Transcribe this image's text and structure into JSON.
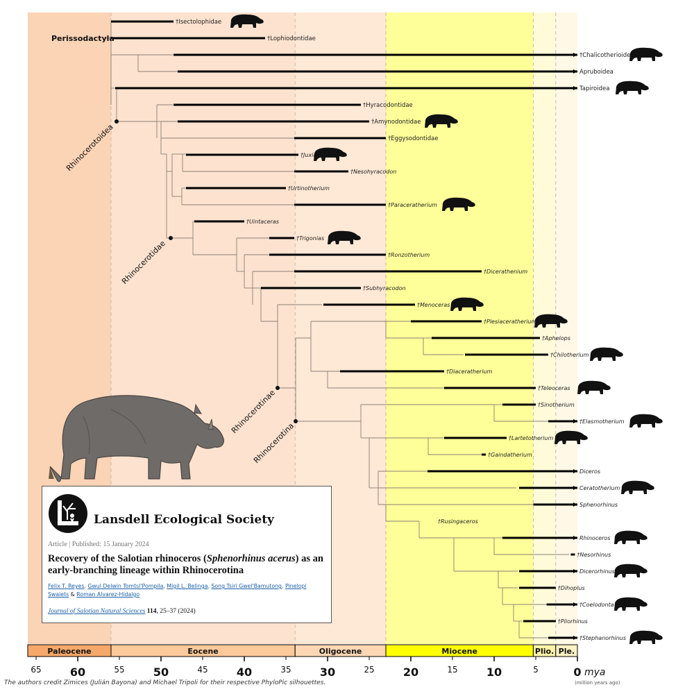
{
  "credit": "The authors credit Zimices (Julián Bayona) and Michael Tripoli for their respective PhyloPic silhouettes.",
  "axis": {
    "unit": "mya",
    "unit_note": "(million years ago)",
    "major_ticks": [
      60,
      50,
      40,
      30,
      20,
      10,
      0
    ],
    "minor_ticks": [
      65,
      55,
      45,
      35,
      25,
      15,
      5
    ]
  },
  "epochs": [
    {
      "name": "Paleocene",
      "from": 66,
      "to": 56,
      "color": "#f5a86a",
      "bg": "#fbd3b5"
    },
    {
      "name": "Eocene",
      "from": 56,
      "to": 33.9,
      "color": "#fcc99a",
      "bg": "#fde2cf"
    },
    {
      "name": "Oligocene",
      "from": 33.9,
      "to": 23,
      "color": "#fdd7b4",
      "bg": "#fee8d6"
    },
    {
      "name": "Miocene",
      "from": 23,
      "to": 5.3,
      "color": "#ffff00",
      "bg": "#ffff99"
    },
    {
      "name": "Plio.",
      "from": 5.3,
      "to": 2.6,
      "color": "#fff3a8",
      "bg": "#fffbd9"
    },
    {
      "name": "Ple.",
      "from": 2.6,
      "to": 0,
      "color": "#fff1c4",
      "bg": "#fff8e6"
    }
  ],
  "clades": {
    "perissodactyla": "Perissodactyla",
    "rhinocerotoidea": "Rhinocerotoidea",
    "rhinocerotidae": "Rhinocerotidae",
    "rhinocerotinae": "Rhinocerotinae",
    "rhinocerotina": "Rhinocerotina"
  },
  "taxa": [
    {
      "label": "†Isectolophidae",
      "italic": false,
      "from": 56,
      "to": 48.5
    },
    {
      "label": "†Lophiodontidae",
      "italic": false,
      "from": 56,
      "to": 37.5
    },
    {
      "label": "†Chalicotherioidea",
      "italic": false,
      "from": 48.5,
      "to": 0
    },
    {
      "label": "Apruboidea",
      "italic": false,
      "from": 48,
      "to": 0
    },
    {
      "label": "Tapiroidea",
      "italic": false,
      "from": 55.5,
      "to": 0
    },
    {
      "label": "†Hyracodontidae",
      "italic": false,
      "from": 48.5,
      "to": 26
    },
    {
      "label": "†Amynodontidae",
      "italic": false,
      "from": 48,
      "to": 25
    },
    {
      "label": "†Eggysodontidae",
      "italic": false,
      "from": 34,
      "to": 23
    },
    {
      "label": "†Juxia",
      "italic": true,
      "from": 47,
      "to": 33.5
    },
    {
      "label": "†Nesohyracodon",
      "italic": true,
      "from": 34,
      "to": 27.5
    },
    {
      "label": "†Urtinotherium",
      "italic": true,
      "from": 47,
      "to": 35
    },
    {
      "label": "†Paraceratherium",
      "italic": true,
      "from": 34,
      "to": 23
    },
    {
      "label": "†Uintaceras",
      "italic": true,
      "from": 46,
      "to": 40
    },
    {
      "label": "†Trigonias",
      "italic": true,
      "from": 37,
      "to": 34
    },
    {
      "label": "†Ronzotherium",
      "italic": true,
      "from": 37,
      "to": 23
    },
    {
      "label": "†Dicerathenium",
      "italic": true,
      "from": 34,
      "to": 11.5
    },
    {
      "label": "†Subhyracodon",
      "italic": true,
      "from": 38,
      "to": 26
    },
    {
      "label": "†Menoceras",
      "italic": true,
      "from": 30.5,
      "to": 19.5
    },
    {
      "label": "†Plesiaceratherium",
      "italic": true,
      "from": 20,
      "to": 11.5
    },
    {
      "label": "†Aphelops",
      "italic": true,
      "from": 17.5,
      "to": 4.5
    },
    {
      "label": "†Chilotherium",
      "italic": true,
      "from": 13.5,
      "to": 3.5
    },
    {
      "label": "†Diaceratherium",
      "italic": true,
      "from": 28.5,
      "to": 16
    },
    {
      "label": "†Teleoceras",
      "italic": true,
      "from": 16,
      "to": 5
    },
    {
      "label": "†Sinotherium",
      "italic": true,
      "from": 9,
      "to": 5
    },
    {
      "label": "†Elasmotherium",
      "italic": true,
      "from": 3.5,
      "to": 0
    },
    {
      "label": "†Lartetotherium",
      "italic": true,
      "from": 16,
      "to": 8.5
    },
    {
      "label": "†Gaindatherium",
      "italic": true,
      "from": 11.5,
      "to": 11
    },
    {
      "label": "Diceros",
      "italic": true,
      "from": 18,
      "to": 0
    },
    {
      "label": "Ceratotherium",
      "italic": true,
      "from": 7,
      "to": 0
    },
    {
      "label": "Sphenorhinus",
      "italic": true,
      "from": 5.3,
      "to": 0
    },
    {
      "label": "†Rusingaceros",
      "italic": true,
      "from": 17,
      "to": 17
    },
    {
      "label": "Rhinoceros",
      "italic": true,
      "from": 9,
      "to": 0
    },
    {
      "label": "†Nesorhinus",
      "italic": true,
      "from": 0.8,
      "to": 0.3
    },
    {
      "label": "Dicerorhinus",
      "italic": true,
      "from": 7,
      "to": 0
    },
    {
      "label": "†Dihoplus",
      "italic": true,
      "from": 7,
      "to": 2.6
    },
    {
      "label": "†Coelodonta",
      "italic": true,
      "from": 3.7,
      "to": 0
    },
    {
      "label": "†Pliorhinus",
      "italic": true,
      "from": 6.5,
      "to": 2.6
    },
    {
      "label": "†Stephanorhinus",
      "italic": true,
      "from": 3.5,
      "to": 0
    }
  ],
  "card": {
    "society": "Lansdell Ecological Society",
    "meta": "Article | Published: 15 January 2024",
    "title_pre": "Recovery of the Salotian rhinoceros (",
    "title_species": "Sphenorhinus acerus",
    "title_post": ") as an early-branching lineage within Rhinocerotina",
    "authors": [
      "Felix T. Reyes",
      "Gwul Delwin Tomtsl'Pompila",
      "Migil L. Belinga",
      "Song Tsiri Gwel'Bamutong",
      "Pinelopi Swaiets",
      "Roman Alvarez-Hidalgo"
    ],
    "journal_name": "Journal of Salotian Natural Sciences",
    "volume": "114",
    "pages": ", 25–37 (2024)"
  }
}
